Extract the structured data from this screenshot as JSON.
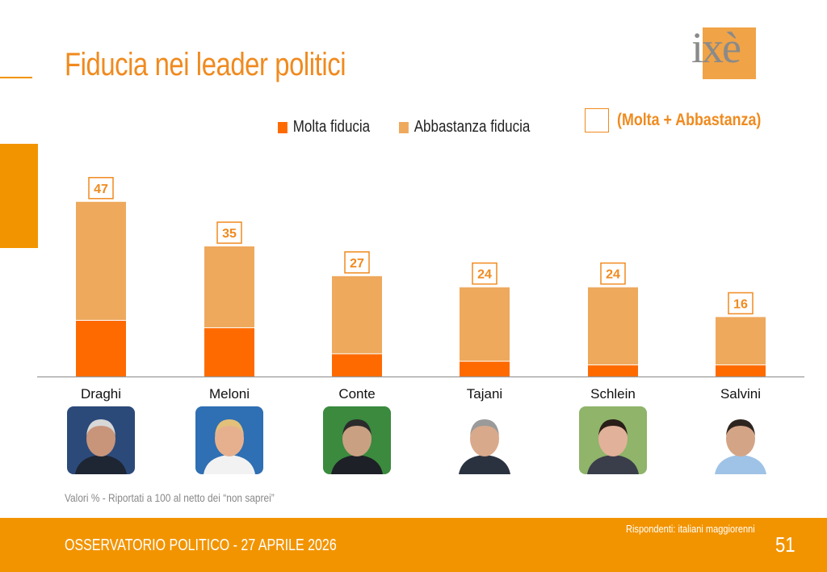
{
  "header": {
    "title": "Fiducia nei leader politici",
    "logo_text": "ixè"
  },
  "legend": {
    "molta": "Molta fiducia",
    "abbastanza": "Abbastanza fiducia",
    "total": "(Molta + Abbastanza)"
  },
  "colors": {
    "molta": "#ff6a00",
    "abbastanza": "#eea95d",
    "accent": "#f29400",
    "title": "#f08a1e"
  },
  "chart_data": {
    "type": "bar",
    "stacked": true,
    "categories": [
      "Draghi",
      "Meloni",
      "Conte",
      "Tajani",
      "Schlein",
      "Salvini"
    ],
    "series": [
      {
        "name": "Molta fiducia",
        "values": [
          15,
          13,
          6,
          4,
          3,
          3
        ]
      },
      {
        "name": "Abbastanza fiducia",
        "values": [
          32,
          22,
          21,
          20,
          21,
          13
        ]
      }
    ],
    "totals": [
      "47",
      "35",
      "27",
      "24",
      "24",
      "16"
    ],
    "total_label": "(Molta + Abbastanza)",
    "ylim": [
      0,
      50
    ],
    "grid": false,
    "legend_position": "top"
  },
  "photos": [
    {
      "name": "Draghi",
      "bg": "#2b4a7a",
      "skin": "#c8957a",
      "hair": "#d8d8d8",
      "suit": "#1e2533"
    },
    {
      "name": "Meloni",
      "bg": "#2f6fb3",
      "skin": "#e6b08f",
      "hair": "#e3c07a",
      "suit": "#f2f2f2"
    },
    {
      "name": "Conte",
      "bg": "#3b8a3e",
      "skin": "#caa083",
      "hair": "#2b2b2b",
      "suit": "#1d2027"
    },
    {
      "name": "Tajani",
      "bg": "#ffffff",
      "skin": "#d9a98c",
      "hair": "#9a9a9a",
      "suit": "#2a3240"
    },
    {
      "name": "Schlein",
      "bg": "#8fb46a",
      "skin": "#e2b199",
      "hair": "#2a1e18",
      "suit": "#3a3d4a"
    },
    {
      "name": "Salvini",
      "bg": "#ffffff",
      "skin": "#d4a486",
      "hair": "#2e2520",
      "suit": "#9fc3e6"
    }
  ],
  "note": "Valori % - Riportati a 100 al netto dei “non saprei”",
  "footer": {
    "left": "OSSERVATORIO POLITICO - 27 APRILE 2026",
    "respondents": "Rispondenti: italiani maggiorenni",
    "page": "51"
  }
}
